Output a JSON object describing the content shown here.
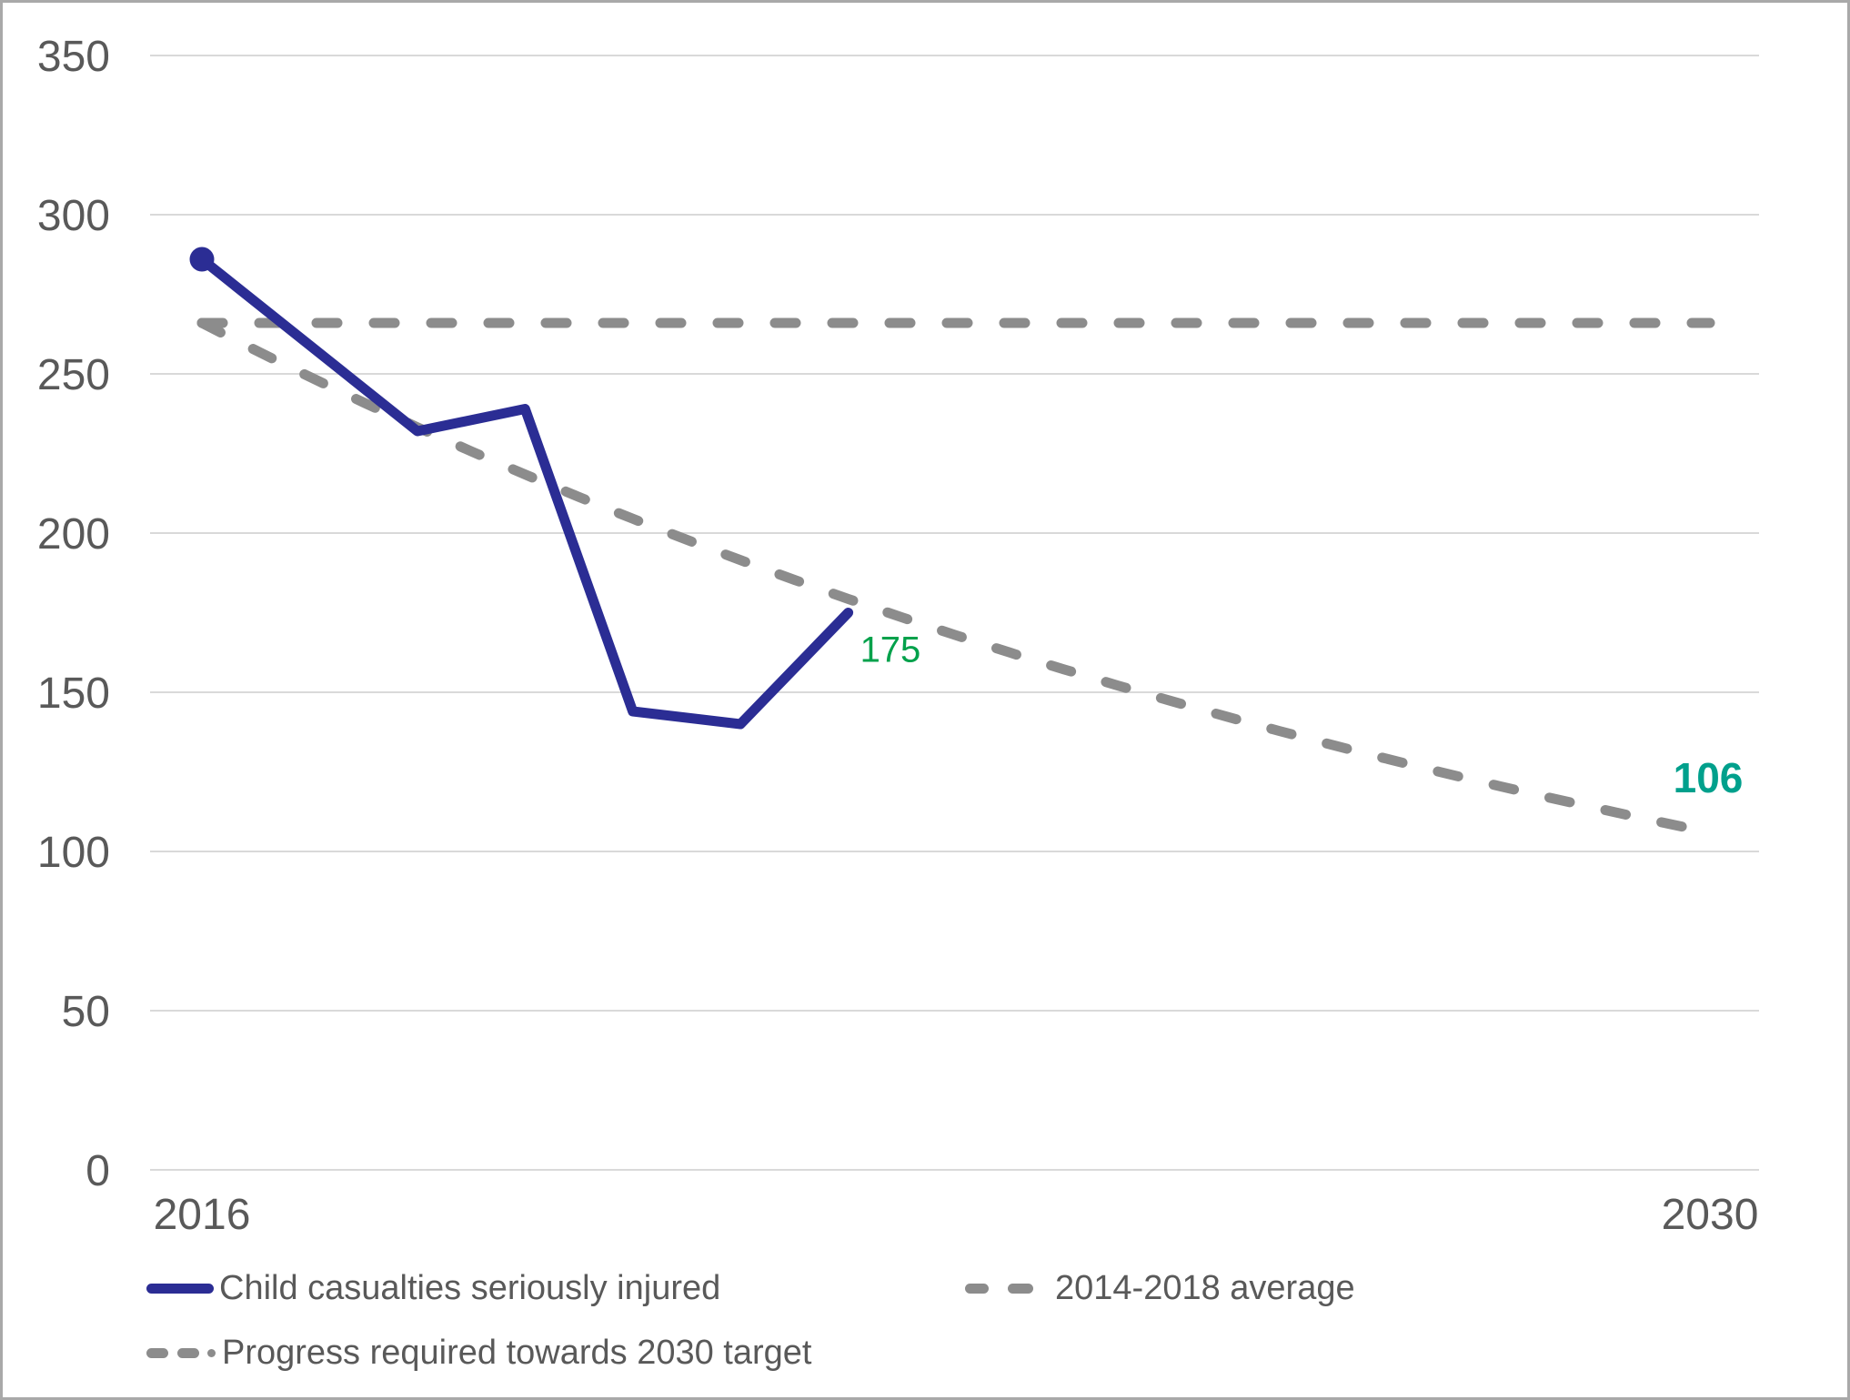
{
  "chart_data": {
    "type": "line",
    "title": "",
    "x_axis": {
      "min": 2016,
      "max": 2030,
      "ticks": [
        2016,
        2030
      ]
    },
    "y_axis": {
      "min": 0,
      "max": 350,
      "ticks": [
        0,
        50,
        100,
        150,
        200,
        250,
        300,
        350
      ]
    },
    "grid": true,
    "legend_position": "bottom",
    "series": [
      {
        "name": "Child casualties seriously injured",
        "style": "solid",
        "color": "#2B2D94",
        "marker_on_first_point": true,
        "x": [
          2016,
          2018,
          2019,
          2020,
          2021,
          2022
        ],
        "values": [
          286,
          232,
          239,
          144,
          140,
          175
        ]
      },
      {
        "name": "2014-2018 average",
        "style": "dashed",
        "color": "#8C8C8C",
        "shape": "horizontal",
        "x": [
          2016,
          2030
        ],
        "values": [
          266,
          266
        ]
      },
      {
        "name": "Progress required towards 2030 target",
        "style": "dashed",
        "color": "#8C8C8C",
        "shape": "exponential-decay",
        "x": [
          2016,
          2030
        ],
        "values": [
          266,
          106
        ]
      }
    ],
    "annotations": [
      {
        "text": "175",
        "color": "#00A14B",
        "bold": false,
        "at_x": 2022,
        "at_y": 175
      },
      {
        "text": "106",
        "color": "#00A08C",
        "bold": true,
        "at_x": 2030,
        "at_y": 106
      }
    ]
  },
  "legend": {
    "items": [
      {
        "label": "Child casualties seriously injured",
        "swatch": "solid-line",
        "color": "#2B2D94"
      },
      {
        "label": "2014-2018 average",
        "swatch": "dashed-line",
        "color": "#8C8C8C"
      },
      {
        "label": "Progress required towards 2030 target",
        "swatch": "dash-dash-dot-line",
        "color": "#8C8C8C"
      }
    ]
  },
  "colors": {
    "gridline": "#D9D9D9",
    "axis_text": "#595959",
    "frame_border": "#A9A9A9"
  }
}
